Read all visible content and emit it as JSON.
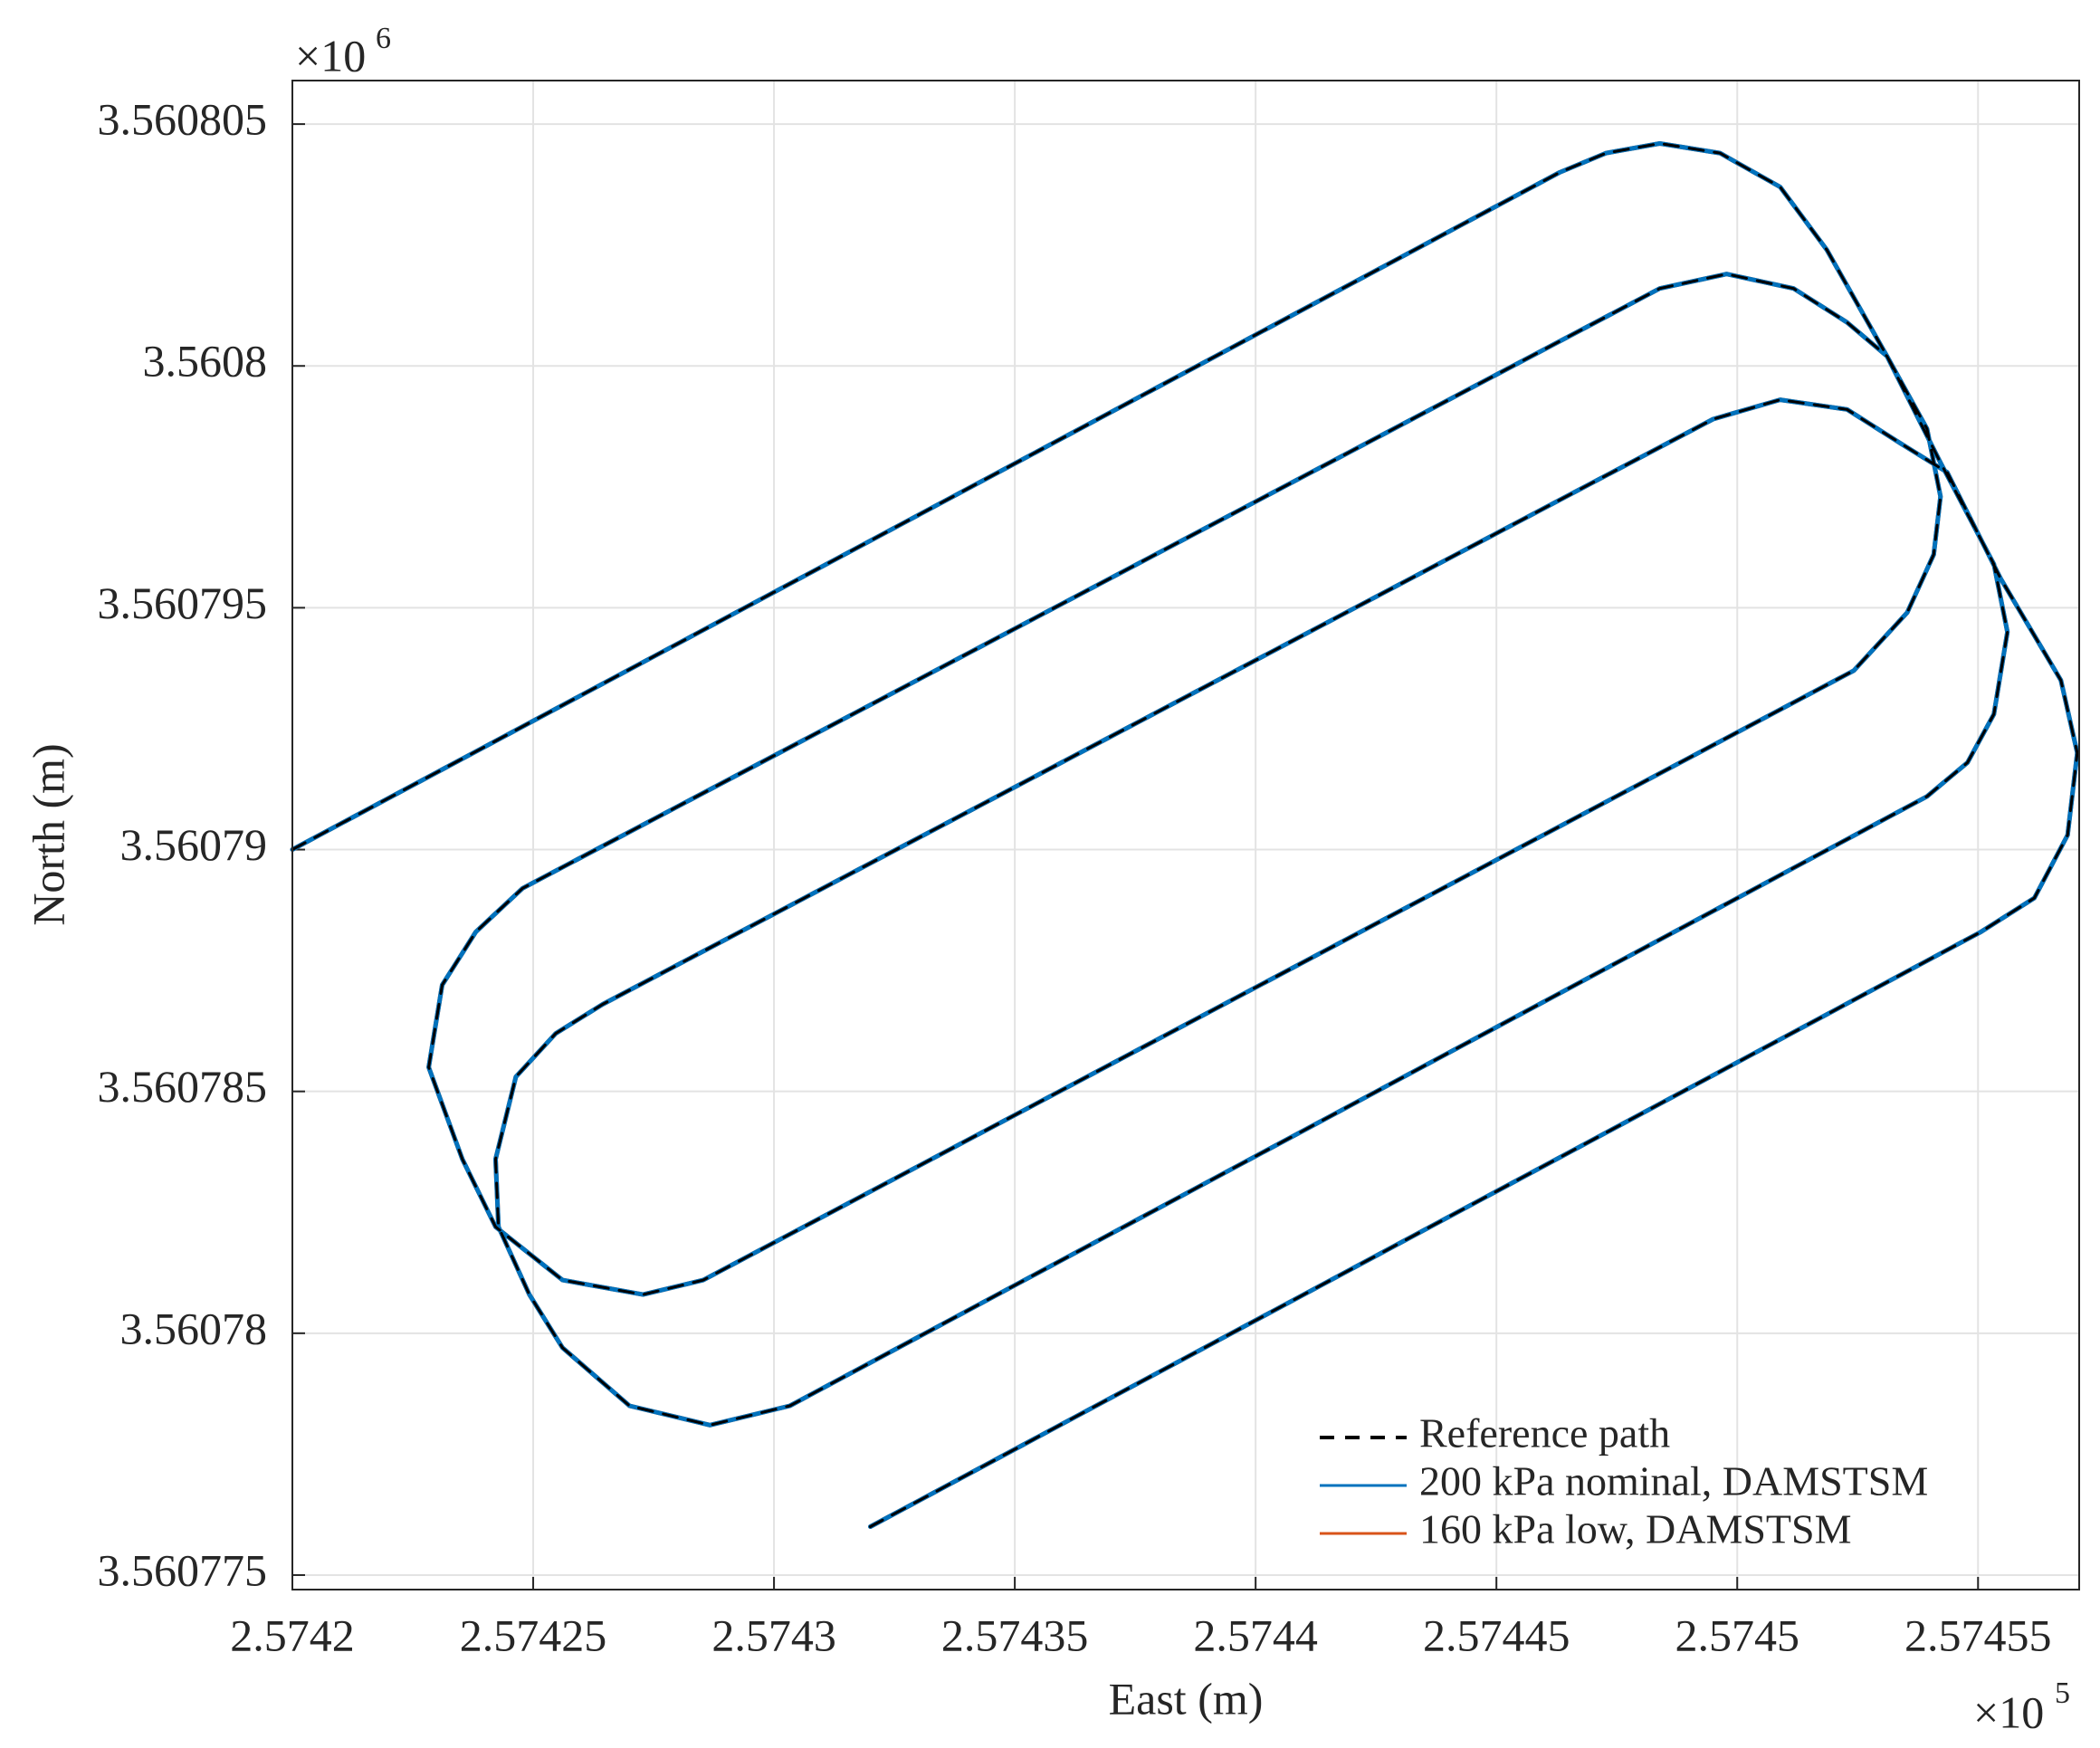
{
  "chart_data": {
    "type": "line",
    "x_label": "East (m)",
    "y_label": "North (m)",
    "x_multiplier": {
      "base": "×10",
      "exponent": "5"
    },
    "y_multiplier": {
      "base": "×10",
      "exponent": "6"
    },
    "xlim": [
      257420,
      257457.1
    ],
    "ylim": [
      3560774.7,
      3560805.9
    ],
    "xticks": [
      {
        "value": 257420,
        "label": "2.5742"
      },
      {
        "value": 257425,
        "label": "2.57425"
      },
      {
        "value": 257430,
        "label": "2.5743"
      },
      {
        "value": 257435,
        "label": "2.57435"
      },
      {
        "value": 257440,
        "label": "2.5744"
      },
      {
        "value": 257445,
        "label": "2.57445"
      },
      {
        "value": 257450,
        "label": "2.5745"
      },
      {
        "value": 257455,
        "label": "2.57455"
      }
    ],
    "yticks": [
      {
        "value": 3560775,
        "label": "3.560775"
      },
      {
        "value": 3560780,
        "label": "3.56078"
      },
      {
        "value": 3560785,
        "label": "3.560785"
      },
      {
        "value": 3560790,
        "label": "3.56079"
      },
      {
        "value": 3560795,
        "label": "3.560795"
      },
      {
        "value": 3560800,
        "label": "3.5608"
      },
      {
        "value": 3560805,
        "label": "3.560805"
      }
    ],
    "grid": true,
    "legend": "lower right",
    "x": [
      257420.0,
      257446.31,
      257447.28,
      257448.39,
      257449.64,
      257450.89,
      257451.86,
      257453.11,
      257453.94,
      257454.22,
      257454.08,
      257453.53,
      257452.42,
      257428.53,
      257427.28,
      257425.61,
      257424.22,
      257423.53,
      257422.83,
      257423.11,
      257423.81,
      257424.78,
      257448.39,
      257449.78,
      257451.17,
      257452.28,
      257453.11,
      257454.22,
      257455.33,
      257455.61,
      257455.33,
      257454.78,
      257453.94,
      257430.33,
      257428.67,
      257427.0,
      257425.61,
      257424.92,
      257424.28,
      257424.22,
      257424.64,
      257425.47,
      257426.44,
      257449.5,
      257450.89,
      257452.28,
      257453.39,
      257454.36,
      257455.47,
      257456.72,
      257457.06,
      257456.86,
      257456.17,
      257455.06,
      257432.0
    ],
    "series": [
      {
        "name": "Reference path",
        "color": "#000000",
        "linestyle": "dashed",
        "values": [
          3560790.0,
          3560804.0,
          3560804.4,
          3560804.6,
          3560804.4,
          3560803.7,
          3560802.4,
          3560800.2,
          3560798.7,
          3560797.3,
          3560796.1,
          3560794.9,
          3560793.7,
          3560781.1,
          3560780.8,
          3560781.1,
          3560782.2,
          3560783.6,
          3560785.5,
          3560787.2,
          3560788.3,
          3560789.2,
          3560801.6,
          3560801.9,
          3560801.6,
          3560800.9,
          3560800.2,
          3560798.0,
          3560795.9,
          3560794.5,
          3560792.8,
          3560791.8,
          3560791.1,
          3560778.5,
          3560778.1,
          3560778.5,
          3560779.7,
          3560780.8,
          3560782.2,
          3560783.6,
          3560785.3,
          3560786.2,
          3560786.8,
          3560798.9,
          3560799.3,
          3560799.1,
          3560798.4,
          3560797.8,
          3560795.6,
          3560793.5,
          3560792.0,
          3560790.3,
          3560789.0,
          3560788.3,
          3560776.0
        ]
      },
      {
        "name": "200 kPa nominal, DAMSTSM",
        "color": "#0072bd",
        "linestyle": "solid",
        "values": [
          3560790.0,
          3560804.0,
          3560804.4,
          3560804.6,
          3560804.4,
          3560803.7,
          3560802.4,
          3560800.2,
          3560798.7,
          3560797.3,
          3560796.1,
          3560794.9,
          3560793.7,
          3560781.1,
          3560780.8,
          3560781.1,
          3560782.2,
          3560783.6,
          3560785.5,
          3560787.2,
          3560788.3,
          3560789.2,
          3560801.6,
          3560801.9,
          3560801.6,
          3560800.9,
          3560800.2,
          3560798.0,
          3560795.9,
          3560794.5,
          3560792.8,
          3560791.8,
          3560791.1,
          3560778.5,
          3560778.1,
          3560778.5,
          3560779.7,
          3560780.8,
          3560782.2,
          3560783.6,
          3560785.3,
          3560786.2,
          3560786.8,
          3560798.9,
          3560799.3,
          3560799.1,
          3560798.4,
          3560797.8,
          3560795.6,
          3560793.5,
          3560792.0,
          3560790.3,
          3560789.0,
          3560788.3,
          3560776.0
        ]
      },
      {
        "name": "160 kPa low, DAMSTSM",
        "color": "#d95319",
        "linestyle": "solid",
        "values": [
          3560790.0,
          3560804.0,
          3560804.4,
          3560804.6,
          3560804.4,
          3560803.7,
          3560802.4,
          3560800.2,
          3560798.7,
          3560797.3,
          3560796.1,
          3560794.9,
          3560793.7,
          3560781.1,
          3560780.8,
          3560781.1,
          3560782.2,
          3560783.6,
          3560785.5,
          3560787.2,
          3560788.3,
          3560789.2,
          3560801.6,
          3560801.9,
          3560801.6,
          3560800.9,
          3560800.2,
          3560798.0,
          3560795.9,
          3560794.5,
          3560792.8,
          3560791.8,
          3560791.1,
          3560778.5,
          3560778.1,
          3560778.5,
          3560779.7,
          3560780.8,
          3560782.2,
          3560783.6,
          3560785.3,
          3560786.2,
          3560786.8,
          3560798.9,
          3560799.3,
          3560799.1,
          3560798.4,
          3560797.8,
          3560795.6,
          3560793.5,
          3560792.0,
          3560790.3,
          3560789.0,
          3560788.3,
          3560776.0
        ]
      }
    ]
  }
}
